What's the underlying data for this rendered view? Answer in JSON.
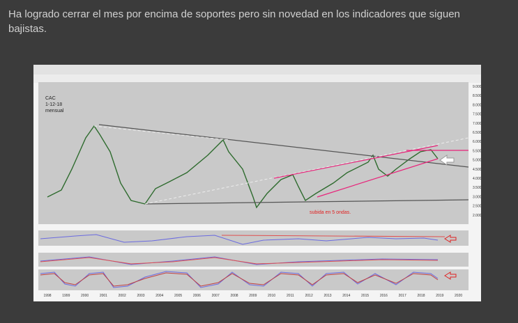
{
  "post": {
    "text": "Ha logrado cerrar el mes por encima de soportes pero sin novedad en los indicadores que siguen bajistas."
  },
  "chart": {
    "index": "CAC",
    "date": "1-12-18",
    "timeframe": "mensual",
    "note": "subida en 5 ondas.",
    "price_labels": [
      "9.000",
      "8.500",
      "8.000",
      "7.500",
      "7.000",
      "6.500",
      "6.000",
      "5.500",
      "5.000",
      "4.500",
      "4.000",
      "3.500",
      "3.000",
      "2.500",
      "2.000"
    ],
    "years": [
      "1998",
      "1999",
      "2000",
      "2001",
      "2002",
      "2003",
      "2004",
      "2005",
      "2006",
      "2007",
      "2008",
      "2009",
      "2010",
      "2011",
      "2012",
      "2013",
      "2014",
      "2015",
      "2016",
      "2017",
      "2018",
      "2019",
      "2020"
    ]
  }
}
